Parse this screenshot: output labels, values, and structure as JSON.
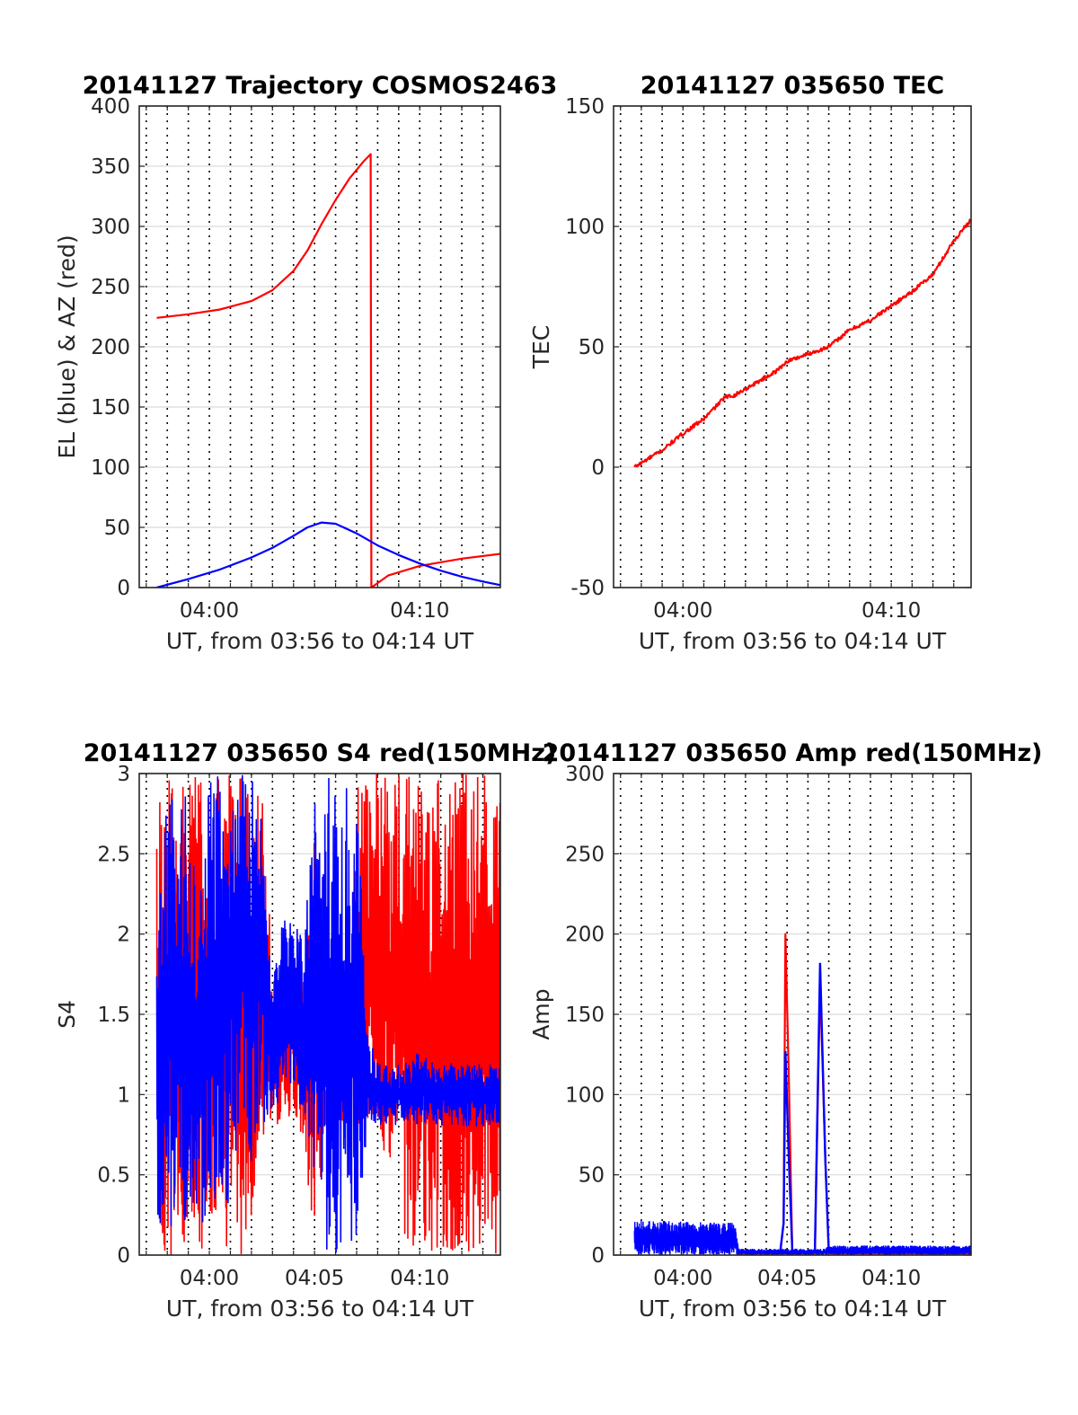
{
  "colors": {
    "red": "#ff0000",
    "blue": "#0000ff",
    "axis": "#262626",
    "grid": "#d9d9d9"
  },
  "chart_data": [
    {
      "type": "line",
      "title": "20141127 Trajectory COSMOS2463",
      "xlabel": "UT, from 03:56 to 04:14 UT",
      "ylabel": "EL (blue) & AZ (red)",
      "xlim": [
        "03:56:40",
        "04:13:50"
      ],
      "ylim": [
        0,
        400
      ],
      "yticks": [
        "0",
        "50",
        "100",
        "150",
        "200",
        "250",
        "300",
        "350",
        "400"
      ],
      "xticks": [
        "04:00",
        "04:10"
      ],
      "grid": "horizontal solid, vertical dotted every 1 min",
      "series": [
        {
          "name": "AZ (red)",
          "color": "red",
          "x": [
            "03:57:30",
            "03:59:00",
            "04:00:30",
            "04:02:00",
            "04:03:00",
            "04:04:00",
            "04:04:40",
            "04:05:20",
            "04:06:00",
            "04:06:40",
            "04:07:20",
            "04:07:40",
            "04:07:42",
            "04:08:30",
            "04:10:00",
            "04:12:00",
            "04:13:50"
          ],
          "y": [
            224,
            227,
            231,
            238,
            247,
            263,
            280,
            302,
            322,
            340,
            354,
            360,
            0,
            10,
            18,
            24,
            28
          ]
        },
        {
          "name": "EL (blue)",
          "color": "blue",
          "x": [
            "03:57:30",
            "03:59:00",
            "04:00:30",
            "04:02:00",
            "04:03:00",
            "04:04:00",
            "04:04:40",
            "04:05:20",
            "04:06:00",
            "04:07:00",
            "04:08:00",
            "04:09:00",
            "04:10:00",
            "04:11:00",
            "04:12:00",
            "04:13:00",
            "04:13:50"
          ],
          "y": [
            0,
            7,
            15,
            25,
            33,
            43,
            50,
            54,
            53,
            45,
            35,
            27,
            20,
            14,
            9,
            5,
            2
          ]
        }
      ]
    },
    {
      "type": "line",
      "title": "20141127 035650 TEC",
      "xlabel": "UT, from 03:56 to 04:14 UT",
      "ylabel": "TEC",
      "xlim": [
        "03:56:40",
        "04:13:50"
      ],
      "ylim": [
        -50,
        150
      ],
      "yticks": [
        "-50",
        "0",
        "50",
        "100",
        "150"
      ],
      "xticks": [
        "04:00",
        "04:10"
      ],
      "grid": "horizontal solid, vertical dotted every 1 min",
      "series": [
        {
          "color": "red",
          "x": [
            "03:57:40",
            "03:59:00",
            "04:00:00",
            "04:01:00",
            "04:02:00",
            "04:02:30",
            "04:03:30",
            "04:04:30",
            "04:05:00",
            "04:06:00",
            "04:07:00",
            "04:08:00",
            "04:09:00",
            "04:10:00",
            "04:11:00",
            "04:12:00",
            "04:13:00",
            "04:13:50"
          ],
          "y": [
            0,
            7,
            14,
            20,
            29,
            30,
            35,
            40,
            44,
            47,
            50,
            57,
            61,
            67,
            73,
            80,
            94,
            103
          ]
        }
      ]
    },
    {
      "type": "line",
      "title": "20141127 035650 S4 red(150MHz)",
      "xlabel": "UT, from 03:56 to 04:14 UT",
      "ylabel": "S4",
      "xlim": [
        "03:56:40",
        "04:13:50"
      ],
      "ylim": [
        0,
        3
      ],
      "yticks": [
        "0",
        "0.5",
        "1",
        "1.5",
        "2",
        "2.5",
        "3"
      ],
      "xticks": [
        "04:00",
        "04:05",
        "04:10"
      ],
      "grid": "horizontal solid, vertical dotted every 1 min",
      "series": [
        {
          "color": "red",
          "x": [
            "03:57:30",
            "03:58:00",
            "03:58:30",
            "03:59:00",
            "03:59:30",
            "04:00:00",
            "04:00:30",
            "04:01:00",
            "04:01:30",
            "04:02:00",
            "04:02:30",
            "04:03:00",
            "04:03:30",
            "04:04:00",
            "04:04:30",
            "04:05:00",
            "04:05:30",
            "04:06:00",
            "04:06:30",
            "04:07:00",
            "04:07:30",
            "04:08:00",
            "04:08:30",
            "04:09:00",
            "04:09:30",
            "04:10:00",
            "04:10:30",
            "04:11:00",
            "04:11:30",
            "04:12:00",
            "04:12:30",
            "04:13:00",
            "04:13:30"
          ],
          "ymin": [
            0,
            0,
            0,
            0,
            0,
            0,
            0,
            0,
            0,
            0,
            0.6,
            0.8,
            0.8,
            0.9,
            0.7,
            0,
            0.8,
            0.8,
            0.8,
            0.8,
            0.8,
            0.8,
            0.5,
            0,
            0,
            0,
            0,
            0,
            0,
            0,
            0,
            0,
            0
          ],
          "ymax": [
            3,
            3,
            3,
            3,
            3,
            3,
            3,
            3,
            3,
            3,
            3,
            1.8,
            1.7,
            2.0,
            1.7,
            3,
            1.1,
            1.2,
            1.2,
            3,
            3,
            3,
            3,
            3,
            3,
            3,
            3,
            3,
            3,
            3,
            3,
            3,
            3
          ]
        },
        {
          "color": "blue",
          "x": [
            "03:57:30",
            "03:58:00",
            "03:58:30",
            "03:59:00",
            "03:59:30",
            "04:00:00",
            "04:00:30",
            "04:01:00",
            "04:01:30",
            "04:02:00",
            "04:02:30",
            "04:03:00",
            "04:03:30",
            "04:04:00",
            "04:04:30",
            "04:05:00",
            "04:05:30",
            "04:06:00",
            "04:06:30",
            "04:07:00",
            "04:07:30",
            "04:08:00",
            "04:08:30",
            "04:09:00",
            "04:09:30",
            "04:10:00",
            "04:10:30",
            "04:11:00",
            "04:11:30",
            "04:12:00",
            "04:12:30",
            "04:13:00",
            "04:13:30"
          ],
          "ymin": [
            0.1,
            0.15,
            0.15,
            0.15,
            0.15,
            0.2,
            0.2,
            0.3,
            0.9,
            0.5,
            0.8,
            0.9,
            1.0,
            0.9,
            0.9,
            0.3,
            0,
            0,
            0,
            0,
            0.8,
            0.8,
            0.8,
            0.8,
            0.8,
            0.8,
            0.8,
            0.8,
            0.8,
            0.8,
            0.8,
            0.8,
            0.8
          ],
          "ymax": [
            2.0,
            2.9,
            3,
            2.8,
            2.3,
            3,
            3,
            3,
            3,
            3,
            2.7,
            1.7,
            2.1,
            2.1,
            2.0,
            3,
            3,
            3,
            3,
            3,
            1.4,
            1.2,
            1.2,
            1.2,
            1.2,
            1.3,
            1.2,
            1.2,
            1.2,
            1.2,
            1.2,
            1.2,
            1.2
          ]
        }
      ]
    },
    {
      "type": "line",
      "title": "20141127 035650 Amp red(150MHz)",
      "xlabel": "UT, from 03:56 to 04:14 UT",
      "ylabel": "Amp",
      "xlim": [
        "03:56:40",
        "04:13:50"
      ],
      "ylim": [
        0,
        300
      ],
      "yticks": [
        "0",
        "50",
        "100",
        "150",
        "200",
        "250",
        "300"
      ],
      "xticks": [
        "04:00",
        "04:05",
        "04:10"
      ],
      "grid": "horizontal solid, vertical dotted every 1 min",
      "series": [
        {
          "color": "red",
          "x": [
            "03:57:40",
            "04:02:30",
            "04:02:40",
            "04:04:40",
            "04:04:50",
            "04:04:55",
            "04:05:05",
            "04:05:15",
            "04:06:20",
            "04:06:35",
            "04:06:50",
            "04:07:00",
            "04:13:50"
          ],
          "y": [
            10,
            10,
            1,
            1,
            20,
            200,
            110,
            1,
            1,
            170,
            60,
            1,
            1
          ]
        },
        {
          "color": "blue",
          "x": [
            "03:57:40",
            "04:02:30",
            "04:02:40",
            "04:04:40",
            "04:04:50",
            "04:04:55",
            "04:05:05",
            "04:05:15",
            "04:06:20",
            "04:06:35",
            "04:06:50",
            "04:07:00",
            "04:13:50"
          ],
          "y": [
            10,
            10,
            2,
            2,
            20,
            127,
            60,
            2,
            2,
            182,
            60,
            2,
            2
          ],
          "band_min": [
            0,
            0,
            0,
            0,
            0,
            0,
            0,
            0,
            0,
            0,
            0,
            0,
            0
          ],
          "band_max": [
            22,
            20,
            4,
            4,
            4,
            4,
            4,
            4,
            4,
            4,
            4,
            6,
            6
          ]
        }
      ]
    }
  ]
}
